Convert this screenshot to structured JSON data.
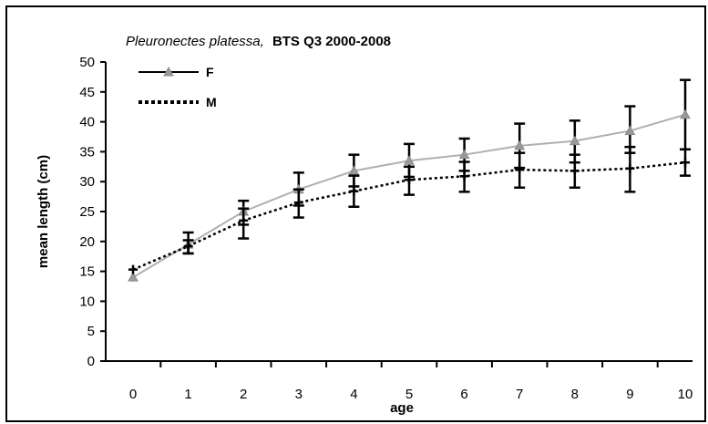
{
  "chart_data": {
    "type": "line",
    "title": "BTS Q3 2000-2008",
    "title_species": "Pleuronectes platessa,",
    "xlabel": "age",
    "ylabel": "mean length (cm)",
    "x": [
      0,
      1,
      2,
      3,
      4,
      5,
      6,
      7,
      8,
      9,
      10
    ],
    "xlim": [
      0,
      10
    ],
    "ylim": [
      0,
      50
    ],
    "yticks": [
      0,
      5,
      10,
      15,
      20,
      25,
      30,
      35,
      40,
      45,
      50
    ],
    "grid": false,
    "legend_position": "top-left",
    "series": [
      {
        "name": "F",
        "color": "#b0b0b0",
        "line_style": "solid",
        "marker": "triangle",
        "values": [
          14,
          19.5,
          25,
          28.7,
          31.8,
          33.5,
          34.5,
          36,
          36.8,
          38.5,
          41.2
        ],
        "err_low": [
          14,
          18,
          22.8,
          26,
          29.2,
          30.8,
          31.8,
          32.3,
          33.2,
          34.8,
          35.4
        ],
        "err_high": [
          14,
          21.5,
          26.8,
          31.5,
          34.5,
          36.3,
          37.2,
          39.7,
          40.2,
          42.6,
          47
        ]
      },
      {
        "name": "M",
        "color": "#000000",
        "line_style": "dashed",
        "marker": "plus",
        "values": [
          15.3,
          19.2,
          23.5,
          26.5,
          28.4,
          30.3,
          30.9,
          32,
          31.8,
          32.2,
          33.2
        ],
        "err_low": [
          15.3,
          18,
          20.5,
          24,
          25.8,
          27.8,
          28.3,
          29,
          29,
          28.3,
          31
        ],
        "err_high": [
          15.3,
          20.2,
          25.5,
          28.7,
          31,
          32.5,
          33.3,
          34.8,
          34.5,
          35.8,
          35.4
        ]
      }
    ]
  }
}
